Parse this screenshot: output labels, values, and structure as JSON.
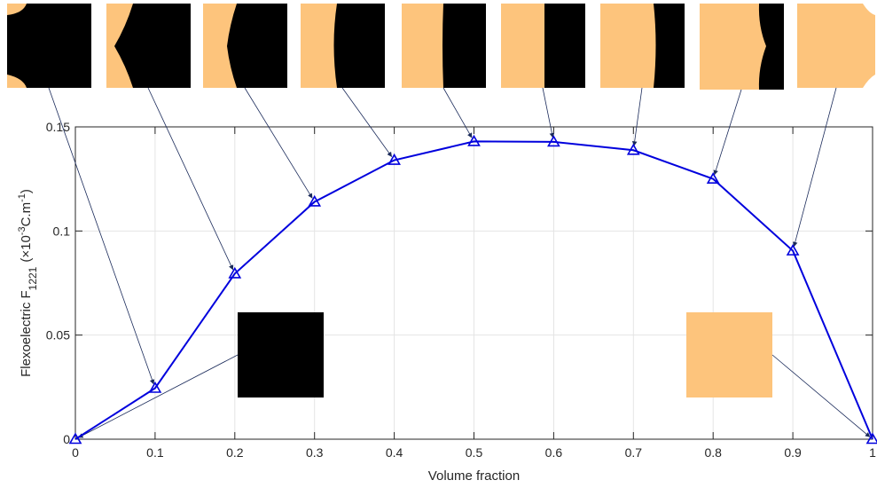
{
  "chart_data": {
    "type": "line",
    "title": "",
    "xlabel": "Volume fraction",
    "ylabel": {
      "main": "Flexoelectric F",
      "subscript": "1221",
      "unit_open": "(×10",
      "unit_exp": "-3",
      "unit_mid": "C.m",
      "unit_exp2": "-1",
      "unit_close": ")"
    },
    "xlim": [
      0,
      1
    ],
    "ylim": [
      0,
      0.15
    ],
    "x_ticks": [
      "0",
      "0.1",
      "0.2",
      "0.3",
      "0.4",
      "0.5",
      "0.6",
      "0.7",
      "0.8",
      "0.9",
      "1"
    ],
    "y_ticks": [
      "0",
      "0.05",
      "0.1",
      "0.15"
    ],
    "grid": true,
    "series": [
      {
        "marker": "triangle",
        "color": "#0000dd",
        "x": [
          0,
          0.1,
          0.2,
          0.3,
          0.4,
          0.5,
          0.6,
          0.7,
          0.8,
          0.9,
          1.0
        ],
        "y": [
          0,
          0.0245,
          0.0795,
          0.114,
          0.134,
          0.143,
          0.1428,
          0.1388,
          0.125,
          0.0905,
          0
        ]
      }
    ],
    "microstructure_insets": {
      "colors": {
        "phase_a": "#000000",
        "phase_b": "#fdc47c"
      },
      "volume_fractions": [
        0.1,
        0.2,
        0.3,
        0.4,
        0.5,
        0.6,
        0.7,
        0.8,
        0.9
      ],
      "pure_phase_insets": [
        {
          "volume_fraction": 0,
          "fill": "phase_a"
        },
        {
          "volume_fraction": 1,
          "fill": "phase_b"
        }
      ]
    }
  }
}
